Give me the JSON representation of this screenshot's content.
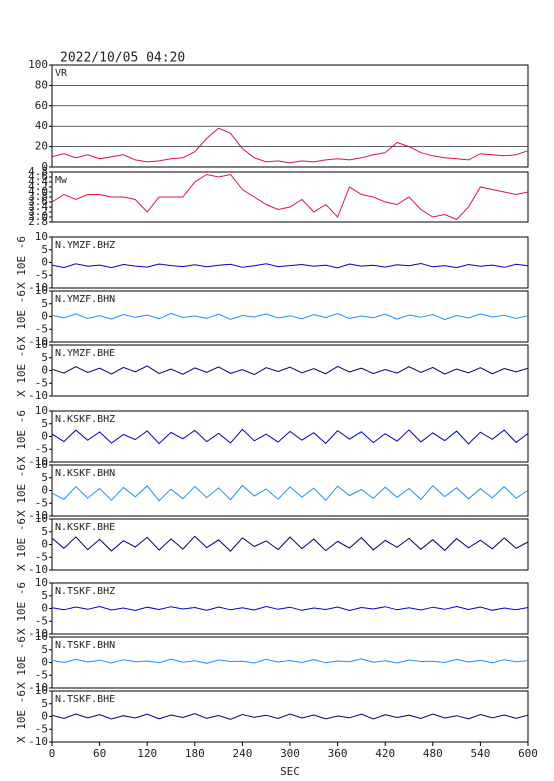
{
  "header": {
    "timestamp": "2022/10/05 04:20"
  },
  "chart_data": [
    {
      "type": "line",
      "title": "VR",
      "color": "#dc143c",
      "grid": true,
      "xlim": [
        0,
        600
      ],
      "ylim": [
        0,
        100
      ],
      "yticks": [
        0,
        20,
        40,
        60,
        80,
        100
      ],
      "x": [
        0,
        15,
        30,
        45,
        60,
        75,
        90,
        105,
        120,
        135,
        150,
        165,
        180,
        195,
        210,
        225,
        240,
        255,
        270,
        285,
        300,
        315,
        330,
        345,
        360,
        375,
        390,
        405,
        420,
        435,
        450,
        465,
        480,
        495,
        510,
        525,
        540,
        555,
        570,
        585,
        600
      ],
      "values": [
        10,
        13,
        9,
        12,
        8,
        10,
        12,
        7,
        5,
        6,
        8,
        9,
        15,
        28,
        38,
        33,
        18,
        9,
        5,
        6,
        4,
        6,
        5,
        7,
        8,
        7,
        9,
        12,
        14,
        24,
        20,
        14,
        11,
        9,
        8,
        7,
        13,
        12,
        11,
        12,
        16
      ]
    },
    {
      "type": "line",
      "title": "Mw",
      "color": "#dc143c",
      "xlim": [
        0,
        600
      ],
      "ylim": [
        2.8,
        4.8
      ],
      "yticks": [
        2.8,
        {
          "value": 3,
          "label": "3.0"
        },
        3.2,
        3.4,
        3.6,
        3.8,
        {
          "value": 4,
          "label": "4.0"
        },
        4.2,
        4.4,
        4.6,
        4.8
      ],
      "x": [
        0,
        15,
        30,
        45,
        60,
        75,
        90,
        105,
        120,
        135,
        150,
        165,
        180,
        195,
        210,
        225,
        240,
        255,
        270,
        285,
        300,
        315,
        330,
        345,
        360,
        375,
        390,
        405,
        420,
        435,
        450,
        465,
        480,
        495,
        510,
        525,
        540,
        555,
        570,
        585,
        600
      ],
      "values": [
        3.6,
        3.9,
        3.7,
        3.9,
        3.9,
        3.8,
        3.8,
        3.7,
        3.2,
        3.8,
        3.8,
        3.8,
        4.4,
        4.7,
        4.6,
        4.7,
        4.1,
        3.8,
        3.5,
        3.3,
        3.4,
        3.7,
        3.2,
        3.5,
        3.0,
        4.2,
        3.9,
        3.8,
        3.6,
        3.5,
        3.8,
        3.3,
        3.0,
        3.1,
        2.9,
        3.4,
        4.2,
        4.1,
        4.0,
        3.9,
        4.0
      ]
    },
    {
      "type": "line",
      "title": "N.YMZF.BHZ",
      "ylabel": "X 10E -6",
      "color": "#0000cd",
      "xlim": [
        0,
        600
      ],
      "ylim": [
        -10,
        10
      ],
      "yticks": [
        -10,
        -5,
        0,
        5,
        10
      ],
      "x": [
        0,
        15,
        30,
        45,
        60,
        75,
        90,
        105,
        120,
        135,
        150,
        165,
        180,
        195,
        210,
        225,
        240,
        255,
        270,
        285,
        300,
        315,
        330,
        345,
        360,
        375,
        390,
        405,
        420,
        435,
        450,
        465,
        480,
        495,
        510,
        525,
        540,
        555,
        570,
        585,
        600
      ],
      "values": [
        -1,
        -2,
        -0.5,
        -1.5,
        -1,
        -2,
        -0.8,
        -1.4,
        -1.8,
        -0.6,
        -1.2,
        -1.6,
        -0.9,
        -1.7,
        -1.1,
        -0.7,
        -1.9,
        -1.3,
        -0.5,
        -1.6,
        -1.2,
        -0.8,
        -1.5,
        -1,
        -2.1,
        -0.6,
        -1.4,
        -1.1,
        -1.8,
        -0.9,
        -1.3,
        -0.4,
        -1.7,
        -1.2,
        -2,
        -0.8,
        -1.5,
        -1,
        -1.9,
        -0.7,
        -1.3
      ]
    },
    {
      "type": "line",
      "title": "N.YMZF.BHN",
      "ylabel": "X 10E -6",
      "color": "#1e90ff",
      "xlim": [
        0,
        600
      ],
      "ylim": [
        -10,
        10
      ],
      "yticks": [
        -10,
        -5,
        0,
        5,
        10
      ],
      "x": [
        0,
        15,
        30,
        45,
        60,
        75,
        90,
        105,
        120,
        135,
        150,
        165,
        180,
        195,
        210,
        225,
        240,
        255,
        270,
        285,
        300,
        315,
        330,
        345,
        360,
        375,
        390,
        405,
        420,
        435,
        450,
        465,
        480,
        495,
        510,
        525,
        540,
        555,
        570,
        585,
        600
      ],
      "values": [
        0.5,
        -0.5,
        1,
        -0.8,
        0.3,
        -1,
        0.8,
        -0.3,
        0.6,
        -0.9,
        1.2,
        -0.4,
        0.2,
        -0.7,
        0.9,
        -1.1,
        0.4,
        -0.2,
        1,
        -0.6,
        0.3,
        -0.9,
        0.7,
        -0.4,
        1.1,
        -0.8,
        0.2,
        -0.5,
        0.9,
        -1,
        0.6,
        -0.3,
        0.8,
        -1.2,
        0.4,
        -0.6,
        1,
        -0.2,
        0.5,
        -0.8,
        0.3
      ]
    },
    {
      "type": "line",
      "title": "N.YMZF.BHE",
      "ylabel": "X 10E -6",
      "color": "#000080",
      "xlim": [
        0,
        600
      ],
      "ylim": [
        -10,
        10
      ],
      "yticks": [
        -10,
        -5,
        0,
        5,
        10
      ],
      "x": [
        0,
        15,
        30,
        45,
        60,
        75,
        90,
        105,
        120,
        135,
        150,
        165,
        180,
        195,
        210,
        225,
        240,
        255,
        270,
        285,
        300,
        315,
        330,
        345,
        360,
        375,
        390,
        405,
        420,
        435,
        450,
        465,
        480,
        495,
        510,
        525,
        540,
        555,
        570,
        585,
        600
      ],
      "values": [
        0.5,
        -1,
        1.5,
        -0.8,
        0.9,
        -1.4,
        1.2,
        -0.5,
        1.8,
        -1.2,
        0.6,
        -1.5,
        1,
        -0.7,
        1.4,
        -1.1,
        0.3,
        -1.6,
        1.1,
        -0.4,
        1.3,
        -0.9,
        0.7,
        -1.3,
        1.6,
        -0.6,
        0.9,
        -1.2,
        0.4,
        -1,
        1.5,
        -0.8,
        1.2,
        -1.4,
        0.6,
        -0.9,
        1.1,
        -1.3,
        0.8,
        -0.5,
        0.9
      ]
    },
    {
      "type": "line",
      "title": "N.KSKF.BHZ",
      "ylabel": "X 10E -6",
      "color": "#0000cd",
      "xlim": [
        0,
        600
      ],
      "ylim": [
        -10,
        10
      ],
      "yticks": [
        -10,
        -5,
        0,
        5,
        10
      ],
      "x": [
        0,
        15,
        30,
        45,
        60,
        75,
        90,
        105,
        120,
        135,
        150,
        165,
        180,
        195,
        210,
        225,
        240,
        255,
        270,
        285,
        300,
        315,
        330,
        345,
        360,
        375,
        390,
        405,
        420,
        435,
        450,
        465,
        480,
        495,
        510,
        525,
        540,
        555,
        570,
        585,
        600
      ],
      "values": [
        1,
        -2,
        2.5,
        -1.5,
        1.8,
        -2.6,
        0.8,
        -1.2,
        2.2,
        -2.8,
        1.6,
        -0.9,
        2.4,
        -2,
        1.2,
        -2.5,
        2.8,
        -1.7,
        0.9,
        -2.2,
        2,
        -1.4,
        1.5,
        -2.7,
        2.3,
        -1,
        1.9,
        -2.4,
        1.1,
        -1.8,
        2.6,
        -2.1,
        1.4,
        -1.6,
        2.1,
        -2.9,
        1.7,
        -1.1,
        2.5,
        -2.3,
        1.2
      ]
    },
    {
      "type": "line",
      "title": "N.KSKF.BHN",
      "ylabel": "X 10E -6",
      "color": "#1e90ff",
      "xlim": [
        0,
        600
      ],
      "ylim": [
        -10,
        10
      ],
      "yticks": [
        -10,
        -5,
        0,
        5,
        10
      ],
      "x": [
        0,
        15,
        30,
        45,
        60,
        75,
        90,
        105,
        120,
        135,
        150,
        165,
        180,
        195,
        210,
        225,
        240,
        255,
        270,
        285,
        300,
        315,
        330,
        345,
        360,
        375,
        390,
        405,
        420,
        435,
        450,
        465,
        480,
        495,
        510,
        525,
        540,
        555,
        570,
        585,
        600
      ],
      "values": [
        -1,
        -3.5,
        1.5,
        -3,
        0.8,
        -3.8,
        1.2,
        -2.5,
        1.8,
        -4,
        0.5,
        -3.2,
        1.6,
        -2.8,
        1,
        -3.6,
        2,
        -2.2,
        0.6,
        -3.4,
        1.4,
        -2.6,
        0.9,
        -3.9,
        1.7,
        -2,
        0.4,
        -3.1,
        1.3,
        -2.7,
        0.8,
        -3.5,
        1.9,
        -2.4,
        1.1,
        -3.3,
        0.7,
        -2.9,
        1.5,
        -3,
        0
      ]
    },
    {
      "type": "line",
      "title": "N.KSKF.BHE",
      "ylabel": "X 10E -6",
      "color": "#000080",
      "xlim": [
        0,
        600
      ],
      "ylim": [
        -10,
        10
      ],
      "yticks": [
        -10,
        -5,
        0,
        5,
        10
      ],
      "x": [
        0,
        15,
        30,
        45,
        60,
        75,
        90,
        105,
        120,
        135,
        150,
        165,
        180,
        195,
        210,
        225,
        240,
        255,
        270,
        285,
        300,
        315,
        330,
        345,
        360,
        375,
        390,
        405,
        420,
        435,
        450,
        465,
        480,
        495,
        510,
        525,
        540,
        555,
        570,
        585,
        600
      ],
      "values": [
        2.5,
        -1.5,
        3,
        -2,
        2,
        -2.5,
        1.5,
        -1,
        2.8,
        -2.2,
        2.2,
        -1.8,
        3.2,
        -1.2,
        1.8,
        -2.6,
        2.6,
        -0.8,
        1.4,
        -2,
        2.9,
        -1.6,
        2.1,
        -2.4,
        1.2,
        -1.4,
        2.7,
        -2.1,
        1.6,
        -1.1,
        2.4,
        -1.9,
        1.9,
        -2.3,
        2.3,
        -1.3,
        1.7,
        -1.7,
        2.6,
        -1.5,
        1
      ]
    },
    {
      "type": "line",
      "title": "N.TSKF.BHZ",
      "ylabel": "X 10E -6",
      "color": "#0000cd",
      "xlim": [
        0,
        600
      ],
      "ylim": [
        -10,
        10
      ],
      "yticks": [
        -10,
        -5,
        0,
        5,
        10
      ],
      "x": [
        0,
        15,
        30,
        45,
        60,
        75,
        90,
        105,
        120,
        135,
        150,
        165,
        180,
        195,
        210,
        225,
        240,
        255,
        270,
        285,
        300,
        315,
        330,
        345,
        360,
        375,
        390,
        405,
        420,
        435,
        450,
        465,
        480,
        495,
        510,
        525,
        540,
        555,
        570,
        585,
        600
      ],
      "values": [
        0.3,
        -0.5,
        0.6,
        -0.3,
        0.8,
        -0.6,
        0.2,
        -0.8,
        0.5,
        -0.4,
        0.7,
        -0.2,
        0.4,
        -0.7,
        0.6,
        -0.5,
        0.3,
        -0.6,
        0.8,
        -0.3,
        0.5,
        -0.7,
        0.2,
        -0.4,
        0.6,
        -0.8,
        0.4,
        -0.2,
        0.7,
        -0.5,
        0.3,
        -0.6,
        0.5,
        -0.3,
        0.8,
        -0.4,
        0.6,
        -0.7,
        0.2,
        -0.5,
        0.4
      ]
    },
    {
      "type": "line",
      "title": "N.TSKF.BHN",
      "ylabel": "X 10E -6",
      "color": "#1e90ff",
      "xlim": [
        0,
        600
      ],
      "ylim": [
        -10,
        10
      ],
      "yticks": [
        -10,
        -5,
        0,
        5,
        10
      ],
      "x": [
        0,
        15,
        30,
        45,
        60,
        75,
        90,
        105,
        120,
        135,
        150,
        165,
        180,
        195,
        210,
        225,
        240,
        255,
        270,
        285,
        300,
        315,
        330,
        345,
        360,
        375,
        390,
        405,
        420,
        435,
        450,
        465,
        480,
        495,
        510,
        525,
        540,
        555,
        570,
        585,
        600
      ],
      "values": [
        0.8,
        0,
        1.2,
        0.2,
        0.9,
        -0.2,
        1.1,
        0.3,
        0.6,
        -0.1,
        1.3,
        0.1,
        0.7,
        -0.3,
        1,
        0.4,
        0.5,
        -0.2,
        1.2,
        0.2,
        0.8,
        0,
        1.1,
        -0.1,
        0.6,
        0.3,
        1.4,
        0.1,
        0.7,
        -0.2,
        1,
        0.4,
        0.5,
        0,
        1.2,
        0.2,
        0.9,
        -0.1,
        1.1,
        0.3,
        0.7
      ]
    },
    {
      "type": "line",
      "title": "N.TSKF.BHE",
      "ylabel": "X 10E -6",
      "color": "#000080",
      "xlim": [
        0,
        600
      ],
      "ylim": [
        -10,
        10
      ],
      "yticks": [
        -10,
        -5,
        0,
        5,
        10
      ],
      "xlabel": "SEC",
      "xticks": [
        0,
        60,
        120,
        180,
        240,
        300,
        360,
        420,
        480,
        540,
        600
      ],
      "x": [
        0,
        15,
        30,
        45,
        60,
        75,
        90,
        105,
        120,
        135,
        150,
        165,
        180,
        195,
        210,
        225,
        240,
        255,
        270,
        285,
        300,
        315,
        330,
        345,
        360,
        375,
        390,
        405,
        420,
        435,
        450,
        465,
        480,
        495,
        510,
        525,
        540,
        555,
        570,
        585,
        600
      ],
      "values": [
        0.5,
        -0.8,
        1,
        -0.5,
        0.7,
        -1,
        0.3,
        -0.6,
        0.9,
        -0.9,
        0.6,
        -0.4,
        1.1,
        -0.7,
        0.4,
        -1.1,
        0.8,
        -0.3,
        0.5,
        -0.8,
        1,
        -0.6,
        0.6,
        -0.9,
        0.2,
        -0.5,
        0.9,
        -1,
        0.7,
        -0.4,
        0.5,
        -0.8,
        1,
        -0.6,
        0.3,
        -0.9,
        0.8,
        -0.5,
        0.6,
        -0.7,
        0.5
      ]
    }
  ]
}
